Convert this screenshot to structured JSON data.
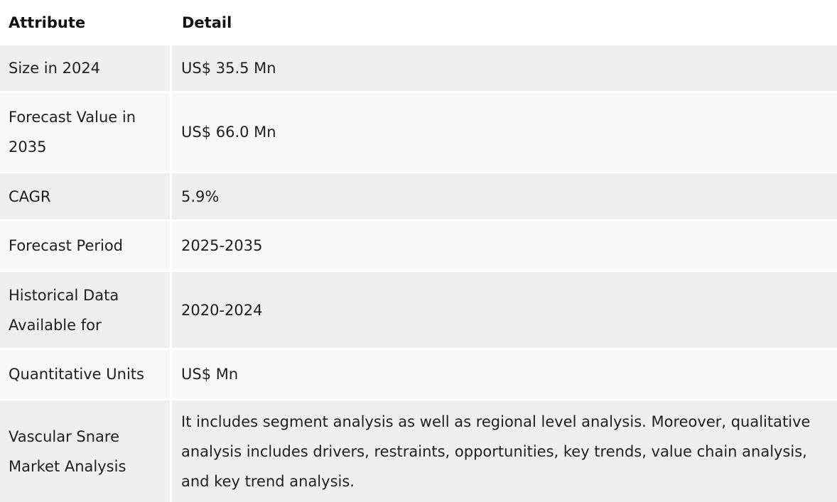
{
  "table": {
    "headers": {
      "attribute": "Attribute",
      "detail": "Detail"
    },
    "rows": [
      {
        "attribute": "Size in 2024",
        "detail": "US$ 35.5 Mn"
      },
      {
        "attribute": "Forecast Value in 2035",
        "detail": "US$ 66.0 Mn"
      },
      {
        "attribute": "CAGR",
        "detail": "5.9%"
      },
      {
        "attribute": "Forecast Period",
        "detail": "2025-2035"
      },
      {
        "attribute": "Historical Data Available for",
        "detail": "2020-2024"
      },
      {
        "attribute": "Quantitative Units",
        "detail": "US$ Mn"
      },
      {
        "attribute": "Vascular Snare Market Analysis",
        "detail": "It includes segment analysis as well as regional level analysis. Moreover, qualitative analysis includes drivers, restraints, opportunities, key trends, value chain analysis, and key trend analysis."
      }
    ]
  }
}
